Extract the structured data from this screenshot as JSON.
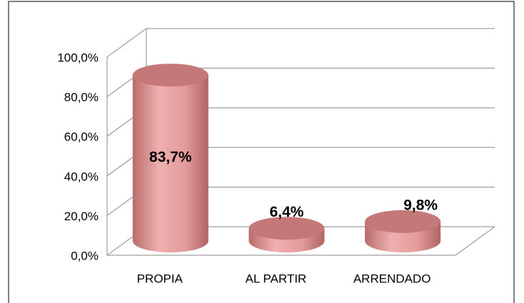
{
  "chart_data": {
    "type": "cylinder-bar",
    "categories": [
      "PROPIA",
      "AL PARTIR",
      "ARRENDADO"
    ],
    "values": [
      83.7,
      6.4,
      9.8
    ],
    "value_labels": [
      "83,7%",
      "6,4%",
      "9,8%"
    ],
    "color": "#e39a9a",
    "ylim": [
      0,
      100
    ],
    "yticks": [
      {
        "value": 0,
        "label": "0,0%"
      },
      {
        "value": 20,
        "label": "20,0%"
      },
      {
        "value": 40,
        "label": "40,0%"
      },
      {
        "value": 60,
        "label": "60,0%"
      },
      {
        "value": 80,
        "label": "80,0%"
      },
      {
        "value": 100,
        "label": "100,0%"
      }
    ],
    "grid": true
  }
}
